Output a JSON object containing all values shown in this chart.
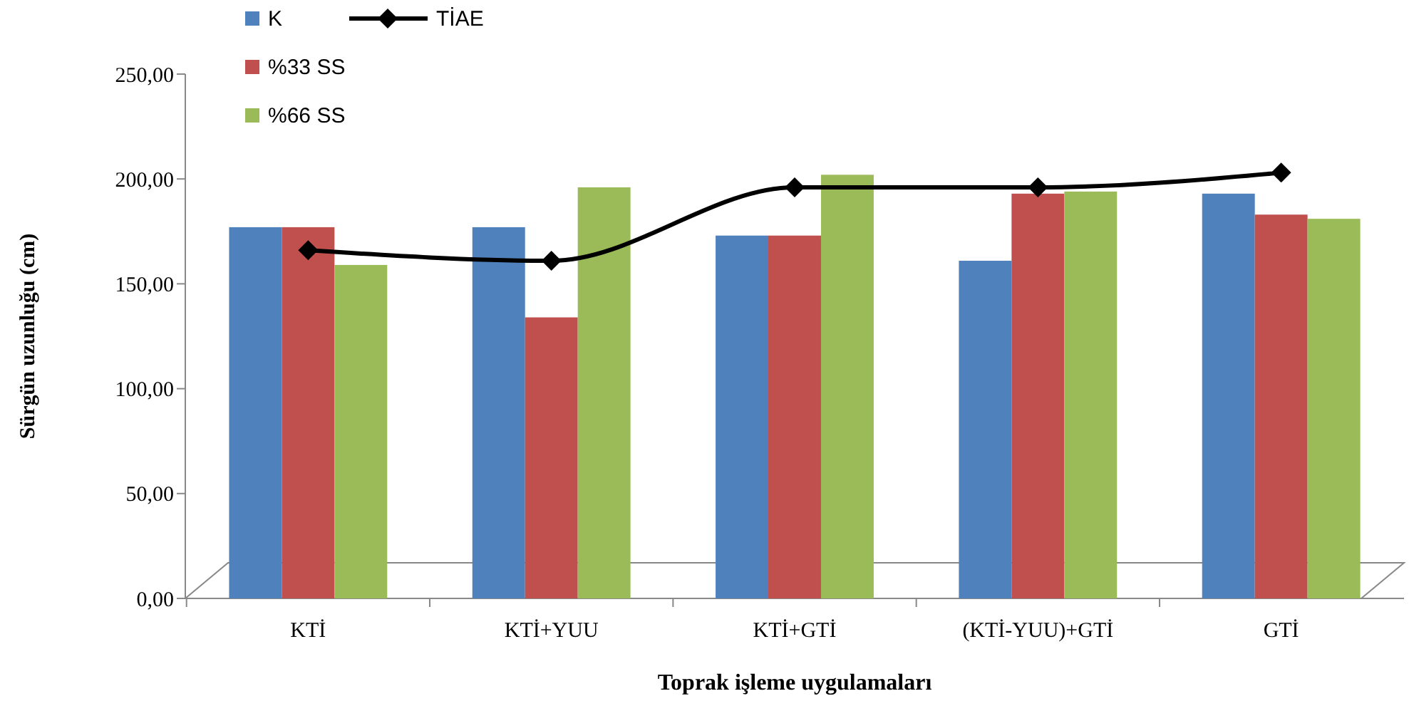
{
  "chart_data": {
    "type": "bar",
    "xlabel": "Toprak işleme uygulamaları",
    "ylabel": "Sürgün uzunluğu (cm)",
    "categories": [
      "KTİ",
      "KTİ+YUU",
      "KTİ+GTİ",
      "(KTİ-YUU)+GTİ",
      "GTİ"
    ],
    "series": [
      {
        "name": "K",
        "color": "#4f81bd",
        "values": [
          177,
          177,
          173,
          161,
          193
        ]
      },
      {
        "name": "%33 SS",
        "color": "#c0504d",
        "values": [
          177,
          134,
          173,
          193,
          183
        ]
      },
      {
        "name": "%66 SS",
        "color": "#9bbb59",
        "values": [
          159,
          196,
          202,
          194,
          181
        ]
      },
      {
        "name": "TİAE",
        "type": "line",
        "color": "#000000",
        "values": [
          166,
          161,
          196,
          196,
          203
        ],
        "marker": "diamond"
      }
    ],
    "ylim": [
      0,
      250
    ],
    "yticks": [
      {
        "value": 0,
        "label": "0,00"
      },
      {
        "value": 50,
        "label": "50,00"
      },
      {
        "value": 100,
        "label": "100,00"
      },
      {
        "value": 150,
        "label": "150,00"
      },
      {
        "value": 200,
        "label": "200,00"
      },
      {
        "value": 250,
        "label": "250,00"
      }
    ],
    "legend": "top",
    "grid": false
  }
}
